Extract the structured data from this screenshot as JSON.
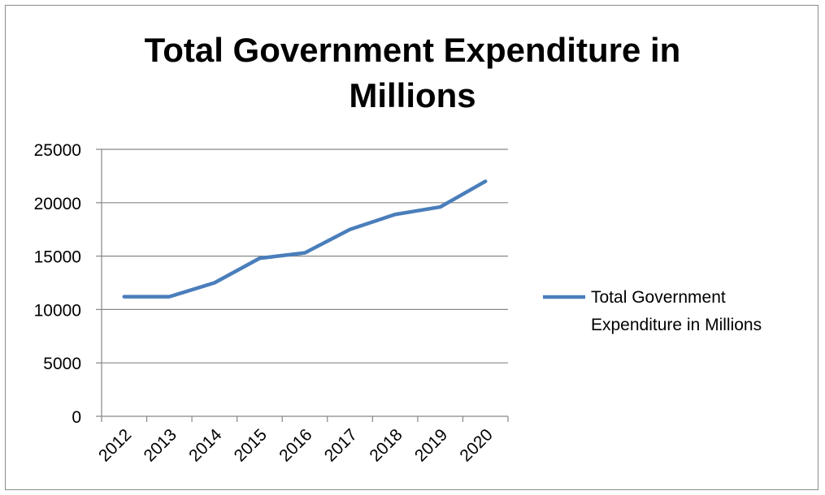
{
  "chart_data": {
    "type": "line",
    "title_lines": [
      "Total Government Expenditure in",
      "Millions"
    ],
    "categories": [
      "2012",
      "2013",
      "2014",
      "2015",
      "2016",
      "2017",
      "2018",
      "2019",
      "2020"
    ],
    "series": [
      {
        "name": "Total Government Expenditure in Millions",
        "legend_lines": [
          "Total Government",
          "Expenditure in Millions"
        ],
        "values": [
          11200,
          11200,
          12500,
          14800,
          15300,
          17500,
          18900,
          19600,
          22000
        ],
        "color": "#4a7ebb"
      }
    ],
    "y_ticks": [
      "0",
      "5000",
      "10000",
      "15000",
      "20000",
      "25000"
    ],
    "ylim": [
      0,
      25000
    ],
    "grid": true,
    "legend_position": "right"
  }
}
